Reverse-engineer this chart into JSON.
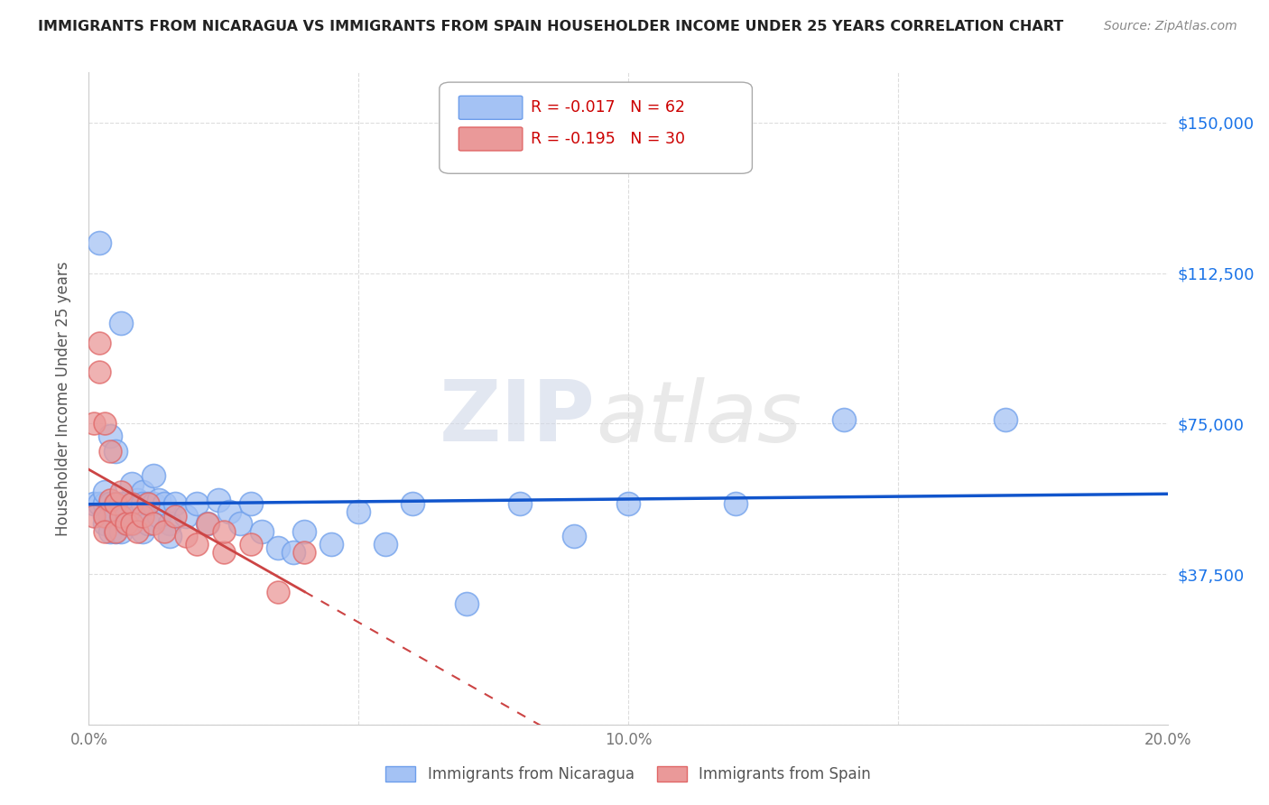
{
  "title": "IMMIGRANTS FROM NICARAGUA VS IMMIGRANTS FROM SPAIN HOUSEHOLDER INCOME UNDER 25 YEARS CORRELATION CHART",
  "source": "Source: ZipAtlas.com",
  "ylabel": "Householder Income Under 25 years",
  "xlim": [
    0.0,
    0.2
  ],
  "ylim": [
    0,
    162500
  ],
  "yticks": [
    0,
    37500,
    75000,
    112500,
    150000
  ],
  "xticks": [
    0.0,
    0.05,
    0.1,
    0.15,
    0.2
  ],
  "xtick_labels": [
    "0.0%",
    "",
    "10.0%",
    "",
    "20.0%"
  ],
  "ytick_labels": [
    "",
    "$37,500",
    "$75,000",
    "$112,500",
    "$150,000"
  ],
  "nicaragua_color": "#a4c2f4",
  "nicaragua_edge": "#6d9eeb",
  "spain_color": "#ea9999",
  "spain_edge": "#e06666",
  "trend_nicaragua_color": "#1155cc",
  "trend_spain_color": "#cc4444",
  "R_nicaragua": -0.017,
  "N_nicaragua": 62,
  "R_spain": -0.195,
  "N_spain": 30,
  "watermark": "ZIPatlas",
  "nicaragua_x": [
    0.001,
    0.002,
    0.002,
    0.003,
    0.003,
    0.003,
    0.003,
    0.004,
    0.004,
    0.004,
    0.004,
    0.005,
    0.005,
    0.005,
    0.005,
    0.006,
    0.006,
    0.006,
    0.006,
    0.007,
    0.007,
    0.007,
    0.008,
    0.008,
    0.008,
    0.009,
    0.009,
    0.01,
    0.01,
    0.01,
    0.011,
    0.011,
    0.012,
    0.012,
    0.013,
    0.013,
    0.014,
    0.015,
    0.015,
    0.016,
    0.018,
    0.02,
    0.022,
    0.024,
    0.026,
    0.028,
    0.03,
    0.032,
    0.035,
    0.038,
    0.04,
    0.045,
    0.05,
    0.055,
    0.06,
    0.07,
    0.08,
    0.09,
    0.1,
    0.12,
    0.14,
    0.17
  ],
  "nicaragua_y": [
    55000,
    120000,
    55000,
    52000,
    55000,
    58000,
    50000,
    72000,
    55000,
    52000,
    48000,
    68000,
    55000,
    52000,
    48000,
    100000,
    55000,
    52000,
    48000,
    55000,
    52000,
    50000,
    60000,
    55000,
    50000,
    56000,
    52000,
    58000,
    55000,
    48000,
    55000,
    50000,
    62000,
    55000,
    56000,
    52000,
    55000,
    50000,
    47000,
    55000,
    52000,
    55000,
    50000,
    56000,
    53000,
    50000,
    55000,
    48000,
    44000,
    43000,
    48000,
    45000,
    53000,
    45000,
    55000,
    30000,
    55000,
    47000,
    55000,
    55000,
    76000,
    76000
  ],
  "spain_x": [
    0.001,
    0.001,
    0.002,
    0.002,
    0.003,
    0.003,
    0.003,
    0.004,
    0.004,
    0.005,
    0.005,
    0.006,
    0.006,
    0.007,
    0.008,
    0.008,
    0.009,
    0.01,
    0.011,
    0.012,
    0.014,
    0.016,
    0.018,
    0.02,
    0.022,
    0.025,
    0.025,
    0.03,
    0.035,
    0.04
  ],
  "spain_y": [
    75000,
    52000,
    95000,
    88000,
    75000,
    52000,
    48000,
    68000,
    56000,
    55000,
    48000,
    52000,
    58000,
    50000,
    55000,
    50000,
    48000,
    52000,
    55000,
    50000,
    48000,
    52000,
    47000,
    45000,
    50000,
    43000,
    48000,
    45000,
    33000,
    43000
  ]
}
